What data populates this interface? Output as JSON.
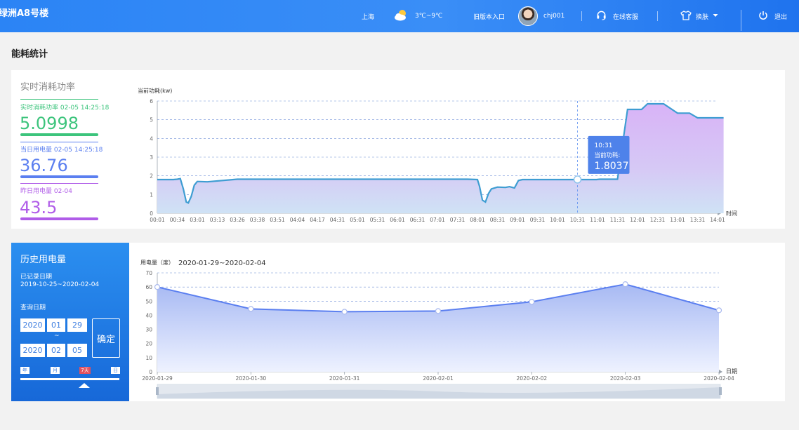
{
  "header": {
    "title": "绿洲A8号楼",
    "city": "上海",
    "weather_icon": "partly-cloudy-icon",
    "temperature": "3℃~9℃",
    "old_version": "旧版本入口",
    "username": "chj001",
    "service": "在线客服",
    "skin": "换肤",
    "logout": "退出",
    "colors": {
      "bar_start": "#2b84f5",
      "bar_end": "#1f73ee"
    }
  },
  "page_title": "能耗统计",
  "realtime": {
    "title": "实时消耗功率",
    "current": {
      "label": "实时消耗功率 02-05 14:25:18",
      "value": "5.0998",
      "color": "#3cc47c"
    },
    "today": {
      "label": "当日用电量 02-05 14:25:18",
      "value": "36.76",
      "color": "#5b7ff0"
    },
    "yesterday": {
      "label": "昨日用电量 02-04",
      "value": "43.5",
      "color": "#b05ce8"
    }
  },
  "history": {
    "title": "历史用电量",
    "recorded_label": "已记录日期",
    "recorded_range": "2019-10-25~2020-02-04",
    "query_label": "查询日期",
    "start": {
      "year": "2020",
      "month": "01",
      "day": "29"
    },
    "tilde": "~",
    "end": {
      "year": "2020",
      "month": "02",
      "day": "05"
    },
    "confirm": "确定",
    "range_options": [
      "年",
      "月",
      "7天",
      "日"
    ],
    "selected_option": "7天"
  },
  "chart_data": [
    {
      "type": "area",
      "ylabel": "当前功耗(kw)",
      "xlabel": "时间",
      "ylim": [
        0,
        6
      ],
      "yticks": [
        0,
        1,
        2,
        3,
        4,
        5,
        6
      ],
      "grid": true,
      "x_tick_labels": [
        "00:01",
        "00:34",
        "03:01",
        "03:13",
        "03:26",
        "03:38",
        "03:51",
        "04:04",
        "04:17",
        "04:31",
        "05:01",
        "05:31",
        "06:01",
        "06:31",
        "07:01",
        "07:31",
        "08:01",
        "08:31",
        "09:01",
        "09:31",
        "10:01",
        "10:31",
        "11:01",
        "11:31",
        "12:01",
        "12:31",
        "13:01",
        "13:31",
        "14:01"
      ],
      "x": [
        0,
        0.8,
        1.0,
        1.15,
        1.3,
        1.45,
        1.55,
        1.7,
        1.85,
        2.0,
        2.5,
        4,
        8,
        10,
        15,
        15.5,
        16.0,
        16.1,
        16.25,
        16.4,
        16.55,
        16.7,
        17.0,
        17.4,
        17.6,
        17.85,
        18.05,
        18.25,
        20,
        21,
        21.95,
        22.1,
        22.5,
        23.0,
        23.5,
        23.9,
        24.2,
        24.5,
        24.8,
        25.3,
        26,
        26.2,
        26.6,
        27,
        27.5,
        28.3
      ],
      "values": [
        1.8,
        1.8,
        1.82,
        1.85,
        1.3,
        0.6,
        0.55,
        0.9,
        1.5,
        1.7,
        1.68,
        1.82,
        1.82,
        1.82,
        1.82,
        1.82,
        1.8,
        1.45,
        0.7,
        0.6,
        1.05,
        1.3,
        1.4,
        1.38,
        1.42,
        1.35,
        1.75,
        1.8,
        1.8,
        1.8,
        1.8,
        1.82,
        1.82,
        1.82,
        5.55,
        5.55,
        5.55,
        5.85,
        5.85,
        5.85,
        5.35,
        5.35,
        5.35,
        5.1,
        5.1,
        5.1
      ],
      "tooltip": {
        "time": "10:31",
        "label": "当前功耗:",
        "value": "1.8037",
        "x_index": 21,
        "y": 1.8037
      },
      "colors": {
        "line": "#3e9dd2",
        "fill_low": "#cfe2f5",
        "fill_high": "#d8b3f7",
        "tooltip": "#4e82ea"
      }
    },
    {
      "type": "area",
      "ylabel": "用电量（度）",
      "date_range": "2020-01-29~2020-02-04",
      "xlabel": "日期",
      "ylim": [
        0,
        70
      ],
      "yticks": [
        0,
        10,
        20,
        30,
        40,
        50,
        60,
        70
      ],
      "grid": true,
      "categories": [
        "2020-01-29",
        "2020-01-30",
        "2020-01-31",
        "2020-02-01",
        "2020-02-02",
        "2020-02-03",
        "2020-02-04"
      ],
      "values": [
        60,
        44.5,
        42.5,
        43,
        49.5,
        62,
        43.5
      ],
      "colors": {
        "line": "#5b7ff0",
        "fill_top": "#a7b9f3",
        "fill_bottom": "#e9efff"
      }
    }
  ]
}
